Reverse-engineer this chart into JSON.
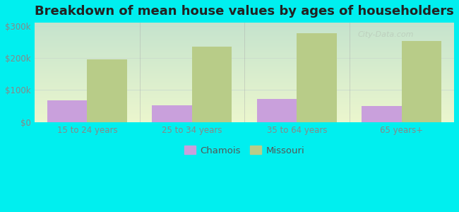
{
  "title": "Breakdown of mean house values by ages of householders",
  "categories": [
    "15 to 24 years",
    "25 to 34 years",
    "35 to 64 years",
    "65 years+"
  ],
  "chamois_values": [
    68000,
    52000,
    72000,
    50000
  ],
  "missouri_values": [
    195000,
    235000,
    278000,
    252000
  ],
  "chamois_color": "#c9a0dc",
  "missouri_color": "#b8cc88",
  "background_color": "#00efef",
  "plot_bg_color": "#e8f5e0",
  "ylim": [
    0,
    310000
  ],
  "yticks": [
    0,
    100000,
    200000,
    300000
  ],
  "ytick_labels": [
    "$0",
    "$100k",
    "$200k",
    "$300k"
  ],
  "bar_width": 0.38,
  "legend_chamois": "Chamois",
  "legend_missouri": "Missouri",
  "title_fontsize": 13,
  "tick_fontsize": 8.5,
  "legend_fontsize": 9.5,
  "grid_color": "#ccddcc",
  "tick_color": "#888888",
  "watermark_text": "City-Data.com",
  "watermark_color": "#bbccbb",
  "divider_color": "#aaaaaa",
  "figsize": [
    6.5,
    3.0
  ],
  "dpi": 100
}
